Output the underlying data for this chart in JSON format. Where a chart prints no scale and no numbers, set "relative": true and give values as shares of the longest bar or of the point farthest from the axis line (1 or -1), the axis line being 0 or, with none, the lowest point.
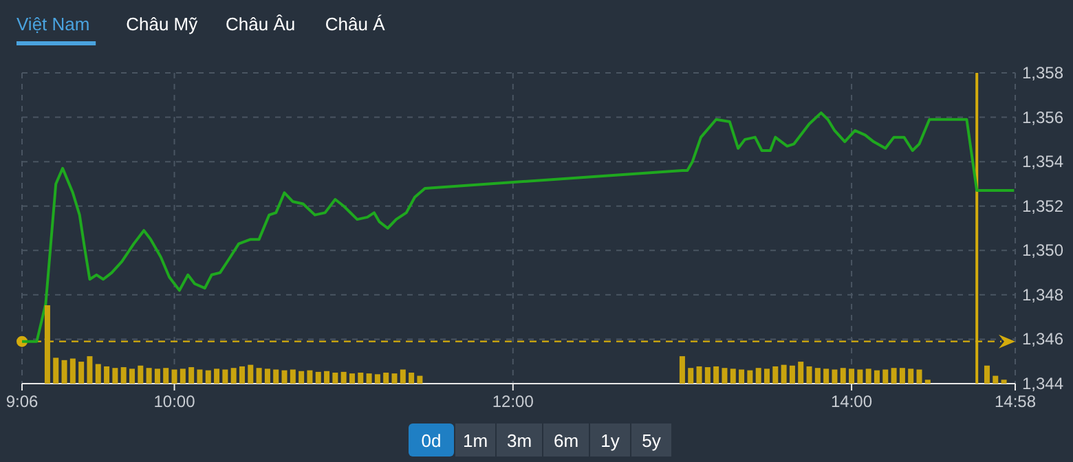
{
  "chart_data": [
    {
      "type": "line",
      "annotations": [
        "Việt Nam",
        "Châu Mỹ",
        "Châu Âu",
        "Châu Á",
        "0d",
        "1m",
        "3m",
        "6m",
        "1y",
        "5y"
      ],
      "xlim": [
        9.1,
        14.9667
      ],
      "xticks": [
        {
          "value": 9.1,
          "label": "9:06"
        },
        {
          "value": 10,
          "label": "10:00"
        },
        {
          "value": 12,
          "label": "12:00"
        },
        {
          "value": 14,
          "label": "14:00"
        },
        {
          "value": 14.9667,
          "label": "14:58"
        }
      ],
      "ylim": [
        1344,
        1358
      ],
      "yticks": [
        {
          "value": 1344,
          "label": "1,344"
        },
        {
          "value": 1346,
          "label": "1,346"
        },
        {
          "value": 1348,
          "label": "1,348"
        },
        {
          "value": 1350,
          "label": "1,350"
        },
        {
          "value": 1352,
          "label": "1,352"
        },
        {
          "value": 1354,
          "label": "1,354"
        },
        {
          "value": 1356,
          "label": "1,356"
        },
        {
          "value": 1358,
          "label": "1,358"
        }
      ],
      "grid": true,
      "marker": "none",
      "line_style": "solid",
      "ref_lines": [
        {
          "axis": "y",
          "value": 1345.9,
          "color": "#d4ac0d",
          "line_style": "dashed"
        },
        {
          "axis": "x",
          "value": 14.74,
          "color": "#d4ac0d",
          "line_style": "solid"
        }
      ],
      "series": [
        {
          "color": "#1fa81f",
          "x": [
            9.1,
            9.187,
            9.24,
            9.3,
            9.34,
            9.4,
            9.44,
            9.47,
            9.5,
            9.54,
            9.58,
            9.63,
            9.69,
            9.76,
            9.82,
            9.86,
            9.92,
            9.97,
            10.03,
            10.08,
            10.12,
            10.18,
            10.22,
            10.27,
            10.33,
            10.38,
            10.45,
            10.5,
            10.56,
            10.6,
            10.65,
            10.7,
            10.76,
            10.83,
            10.89,
            10.95,
            11.0,
            11.08,
            11.14,
            11.18,
            11.21,
            11.26,
            11.31,
            11.37,
            11.42,
            11.48,
            13.0,
            13.03,
            13.06,
            13.11,
            13.2,
            13.28,
            13.33,
            13.37,
            13.43,
            13.47,
            13.52,
            13.55,
            13.62,
            13.66,
            13.75,
            13.82,
            13.86,
            13.9,
            13.96,
            14.02,
            14.08,
            14.13,
            14.2,
            14.25,
            14.31,
            14.36,
            14.4,
            14.46,
            14.68,
            14.74,
            14.96
          ],
          "values": [
            1345.9,
            1345.9,
            1347.6,
            1353.0,
            1353.7,
            1352.6,
            1351.6,
            1350.1,
            1348.7,
            1348.9,
            1348.7,
            1349.0,
            1349.5,
            1350.3,
            1350.9,
            1350.5,
            1349.7,
            1348.8,
            1348.2,
            1348.9,
            1348.5,
            1348.3,
            1348.9,
            1349.0,
            1349.7,
            1350.3,
            1350.5,
            1350.5,
            1351.6,
            1351.7,
            1352.6,
            1352.2,
            1352.1,
            1351.6,
            1351.7,
            1352.3,
            1352.0,
            1351.4,
            1351.5,
            1351.7,
            1351.3,
            1351.0,
            1351.4,
            1351.7,
            1352.4,
            1352.8,
            1353.6,
            1353.6,
            1354.0,
            1355.1,
            1355.9,
            1355.8,
            1354.6,
            1355.0,
            1355.1,
            1354.5,
            1354.5,
            1355.1,
            1354.7,
            1354.8,
            1355.7,
            1356.2,
            1355.9,
            1355.4,
            1354.9,
            1355.4,
            1355.2,
            1354.9,
            1354.6,
            1355.1,
            1355.1,
            1354.5,
            1354.8,
            1355.9,
            1355.9,
            1352.7,
            1352.7
          ]
        }
      ]
    },
    {
      "type": "bar",
      "relative": true,
      "xlim": [
        9.1,
        14.9667
      ],
      "color": "#c9a40f",
      "x": [
        9.25,
        9.3,
        9.35,
        9.4,
        9.45,
        9.5,
        9.55,
        9.6,
        9.65,
        9.7,
        9.75,
        9.8,
        9.85,
        9.9,
        9.95,
        10.0,
        10.05,
        10.1,
        10.15,
        10.2,
        10.25,
        10.3,
        10.35,
        10.4,
        10.45,
        10.5,
        10.55,
        10.6,
        10.65,
        10.7,
        10.75,
        10.8,
        10.85,
        10.9,
        10.95,
        11.0,
        11.05,
        11.1,
        11.15,
        11.2,
        11.25,
        11.3,
        11.35,
        11.4,
        11.45,
        13.0,
        13.05,
        13.1,
        13.15,
        13.2,
        13.25,
        13.3,
        13.35,
        13.4,
        13.45,
        13.5,
        13.55,
        13.6,
        13.65,
        13.7,
        13.75,
        13.8,
        13.85,
        13.9,
        13.95,
        14.0,
        14.05,
        14.1,
        14.15,
        14.2,
        14.25,
        14.3,
        14.35,
        14.4,
        14.45,
        14.8,
        14.85,
        14.9
      ],
      "values": [
        1.0,
        0.33,
        0.3,
        0.32,
        0.28,
        0.35,
        0.25,
        0.22,
        0.2,
        0.21,
        0.19,
        0.23,
        0.2,
        0.19,
        0.2,
        0.18,
        0.19,
        0.21,
        0.18,
        0.17,
        0.19,
        0.18,
        0.2,
        0.22,
        0.24,
        0.2,
        0.19,
        0.18,
        0.17,
        0.18,
        0.16,
        0.17,
        0.15,
        0.16,
        0.14,
        0.15,
        0.13,
        0.14,
        0.13,
        0.12,
        0.14,
        0.13,
        0.18,
        0.14,
        0.1,
        0.35,
        0.2,
        0.22,
        0.21,
        0.22,
        0.2,
        0.19,
        0.18,
        0.17,
        0.2,
        0.19,
        0.22,
        0.24,
        0.23,
        0.28,
        0.22,
        0.2,
        0.19,
        0.18,
        0.2,
        0.19,
        0.18,
        0.19,
        0.17,
        0.18,
        0.2,
        0.2,
        0.19,
        0.18,
        0.05,
        0.23,
        0.1,
        0.05
      ]
    }
  ]
}
